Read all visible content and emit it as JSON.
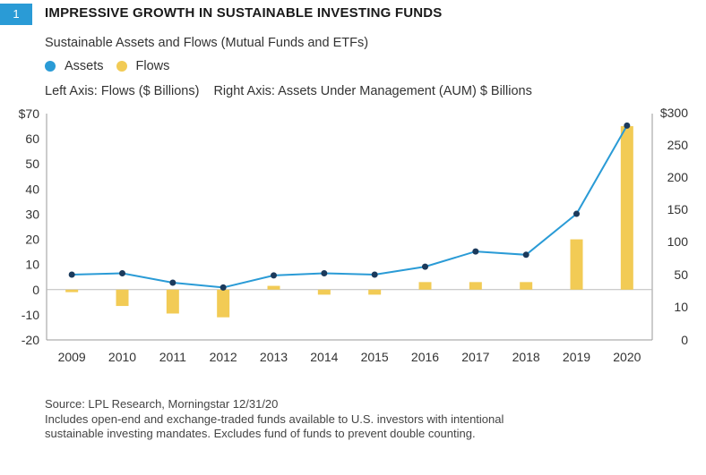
{
  "figure": {
    "number": "1",
    "title": "IMPRESSIVE GROWTH IN SUSTAINABLE INVESTING FUNDS",
    "subtitle": "Sustainable Assets and Flows (Mutual Funds and ETFs)",
    "left_axis_note": "Left Axis: Flows ($ Billions)",
    "right_axis_note": "Right Axis: Assets Under Management (AUM) $ Billions",
    "source": "Source: LPL Research, Morningstar  12/31/20",
    "note_line1": "Includes open-end and exchange-traded funds available to U.S. investors with intentional",
    "note_line2": "sustainable investing mandates. Excludes fund of funds to prevent double counting."
  },
  "colors": {
    "assets": "#2a9bd6",
    "flows": "#f2cb55",
    "marker": "#1b3a5c",
    "badge": "#2a9bd6"
  },
  "chart_data": {
    "type": "bar",
    "categories": [
      "2009",
      "2010",
      "2011",
      "2012",
      "2013",
      "2014",
      "2015",
      "2016",
      "2017",
      "2018",
      "2019",
      "2020"
    ],
    "series": [
      {
        "name": "Assets",
        "kind": "line",
        "axis": "right",
        "values": [
          50,
          52,
          40,
          34,
          49,
          52,
          50,
          62,
          85,
          80,
          143,
          280
        ]
      },
      {
        "name": "Flows",
        "kind": "bar",
        "axis": "left",
        "values": [
          -1,
          -6.5,
          -9.5,
          -11,
          1.5,
          -2,
          -2,
          3,
          3,
          3,
          20,
          65
        ]
      }
    ],
    "left_axis": {
      "ticks": [
        70,
        60,
        50,
        40,
        30,
        20,
        10,
        0,
        -10,
        -20
      ],
      "labels": [
        "$70",
        "60",
        "50",
        "40",
        "30",
        "20",
        "10",
        "0",
        "-10",
        "-20"
      ],
      "ylim": [
        -20,
        70
      ]
    },
    "right_axis": {
      "ticks": [
        "$300",
        "250",
        "200",
        "150",
        "100",
        "50",
        "10",
        "0"
      ]
    },
    "grid": false
  }
}
